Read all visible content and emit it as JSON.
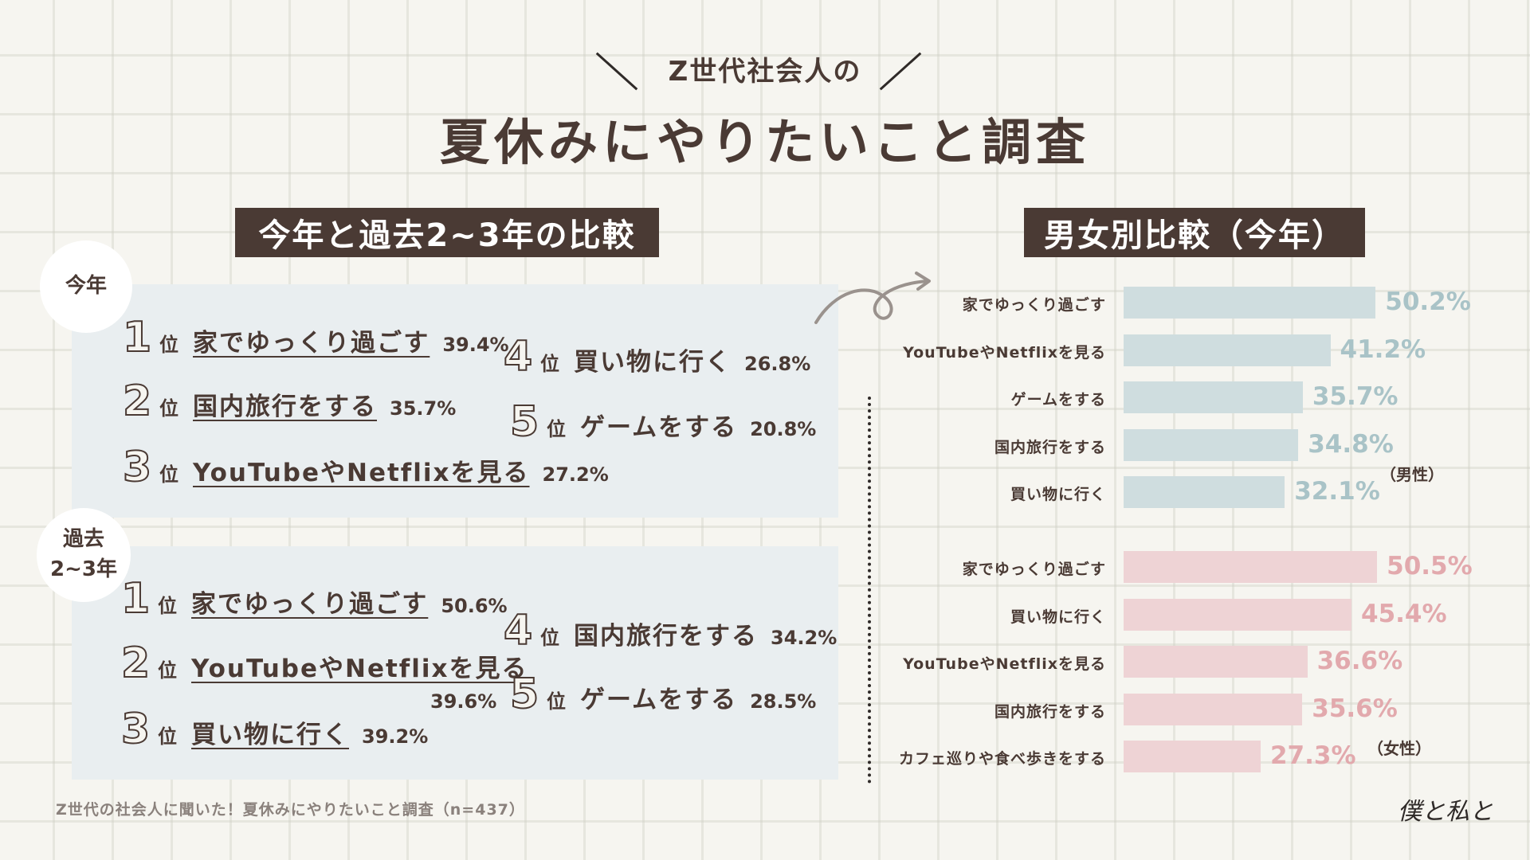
{
  "header": {
    "subtitle": "Z世代社会人の",
    "title": "夏休みにやりたいこと調査"
  },
  "left_section": {
    "heading": "今年と過去2~3年の比較",
    "this_year": {
      "badge": "今年",
      "ranks": [
        {
          "num": "1",
          "pos": "位",
          "label": "家でゆっくり過ごす",
          "pct": "39.4%"
        },
        {
          "num": "2",
          "pos": "位",
          "label": "国内旅行をする",
          "pct": "35.7%"
        },
        {
          "num": "3",
          "pos": "位",
          "label": "YouTubeやNetflixを見る",
          "pct": "27.2%"
        },
        {
          "num": "4",
          "pos": "位",
          "label": "買い物に行く",
          "pct": "26.8%"
        },
        {
          "num": "5",
          "pos": "位",
          "label": "ゲームをする",
          "pct": "20.8%"
        }
      ]
    },
    "past_years": {
      "badge_line1": "過去",
      "badge_line2": "2~3年",
      "ranks": [
        {
          "num": "1",
          "pos": "位",
          "label": "家でゆっくり過ごす",
          "pct": "50.6%"
        },
        {
          "num": "2",
          "pos": "位",
          "label": "YouTubeやNetflixを見る",
          "pct": "39.6%"
        },
        {
          "num": "3",
          "pos": "位",
          "label": "買い物に行く",
          "pct": "39.2%"
        },
        {
          "num": "4",
          "pos": "位",
          "label": "国内旅行をする",
          "pct": "34.2%"
        },
        {
          "num": "5",
          "pos": "位",
          "label": "ゲームをする",
          "pct": "28.5%"
        }
      ]
    }
  },
  "right_section": {
    "heading": "男女別比較（今年）",
    "male_tag": "（男性）",
    "female_tag": "（女性）"
  },
  "colors": {
    "male_bar": "#cfdddf",
    "male_text": "#a9c3c7",
    "female_bar": "#eed3d5",
    "female_text": "#e2a9ad",
    "dark": "#4a3a34"
  },
  "chart_data": {
    "type": "bar",
    "orientation": "horizontal",
    "title": "男女別比較（今年）",
    "unit": "%",
    "xlim": [
      0,
      100
    ],
    "series": [
      {
        "name": "男性",
        "categories": [
          "家でゆっくり過ごす",
          "YouTubeやNetflixを見る",
          "ゲームをする",
          "国内旅行をする",
          "買い物に行く"
        ],
        "values": [
          50.2,
          41.2,
          35.7,
          34.8,
          32.1
        ],
        "labels": [
          "50.2%",
          "41.2%",
          "35.7%",
          "34.8%",
          "32.1%"
        ]
      },
      {
        "name": "女性",
        "categories": [
          "家でゆっくり過ごす",
          "買い物に行く",
          "YouTubeやNetflixを見る",
          "国内旅行をする",
          "カフェ巡りや食べ歩きをする"
        ],
        "values": [
          50.5,
          45.4,
          36.6,
          35.6,
          27.3
        ],
        "labels": [
          "50.5%",
          "45.4%",
          "36.6%",
          "35.6%",
          "27.3%"
        ]
      }
    ]
  },
  "footer": {
    "source": "Z世代の社会人に聞いた！夏休みにやりたいこと調査（n=437）",
    "logo": "僕と私と"
  }
}
